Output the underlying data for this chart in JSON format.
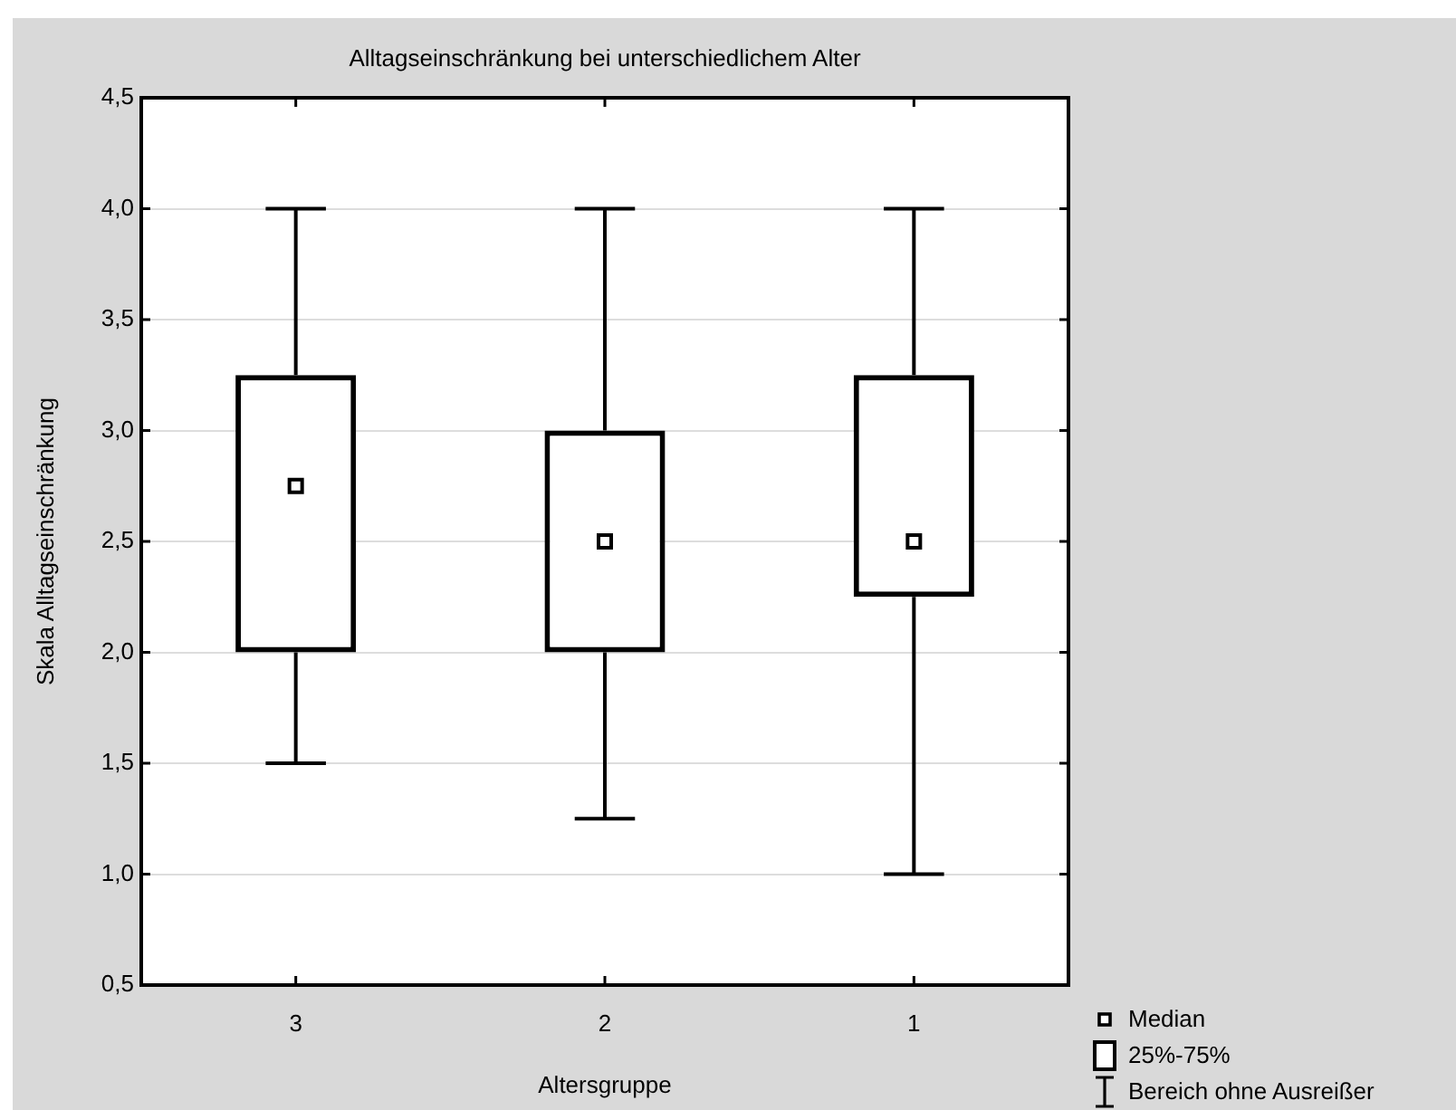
{
  "chart_data": {
    "type": "box",
    "title": "Alltagseinschränkung bei unterschiedlichem Alter",
    "xlabel": "Altersgruppe",
    "ylabel": "Skala Alltagseinschränkung",
    "categories": [
      "3",
      "2",
      "1"
    ],
    "boxes": [
      {
        "low": 1.5,
        "q1": 2.0,
        "median": 2.75,
        "q3": 3.25,
        "high": 4.0
      },
      {
        "low": 1.25,
        "q1": 2.0,
        "median": 2.5,
        "q3": 3.0,
        "high": 4.0
      },
      {
        "low": 1.0,
        "q1": 2.25,
        "median": 2.5,
        "q3": 3.25,
        "high": 4.0
      }
    ],
    "color": "#000000",
    "ylim": [
      0.5,
      4.5
    ],
    "yticks": [
      {
        "value": 0.5,
        "label": "0,5"
      },
      {
        "value": 1.0,
        "label": "1,0"
      },
      {
        "value": 1.5,
        "label": "1,5"
      },
      {
        "value": 2.0,
        "label": "2,0"
      },
      {
        "value": 2.5,
        "label": "2,5"
      },
      {
        "value": 3.0,
        "label": "3,0"
      },
      {
        "value": 3.5,
        "label": "3,5"
      },
      {
        "value": 4.0,
        "label": "4,0"
      },
      {
        "value": 4.5,
        "label": "4,5"
      }
    ],
    "grid": "y",
    "annotations": [
      "Median",
      "25%-75%",
      "Bereich ohne Ausreißer"
    ]
  }
}
